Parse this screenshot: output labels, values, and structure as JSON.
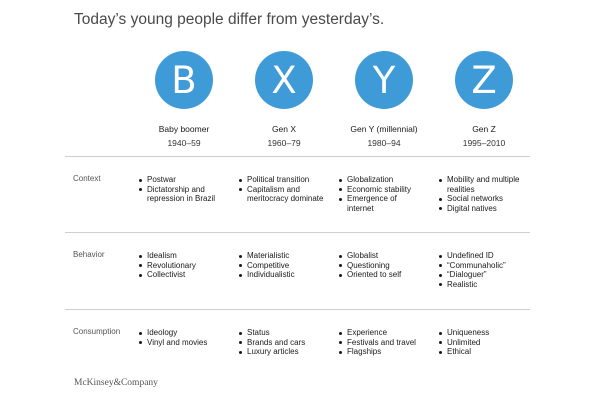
{
  "title": "Today’s young people differ from yesterday’s.",
  "generations": [
    {
      "letter": "B",
      "name": "Baby boomer",
      "years": "1940–59"
    },
    {
      "letter": "X",
      "name": "Gen X",
      "years": "1960–79"
    },
    {
      "letter": "Y",
      "name": "Gen Y (millennial)",
      "years": "1980–94"
    },
    {
      "letter": "Z",
      "name": "Gen Z",
      "years": "1995–2010"
    }
  ],
  "rows": [
    {
      "label": "Context",
      "cells": [
        [
          "Postwar",
          "Dictatorship and repression in Brazil"
        ],
        [
          "Political transition",
          "Capitalism and meritocracy dominate"
        ],
        [
          "Globalization",
          "Economic stability",
          "Emergence of internet"
        ],
        [
          "Mobility and multiple realities",
          "Social networks",
          "Digital natives"
        ]
      ]
    },
    {
      "label": "Behavior",
      "cells": [
        [
          "Idealism",
          "Revolutionary",
          "Collectivist"
        ],
        [
          "Materialistic",
          "Competitive",
          "Individualistic"
        ],
        [
          "Globalist",
          "Questioning",
          "Oriented to self"
        ],
        [
          "Undefined ID",
          "“Communaholic”",
          "“Dialoguer”",
          "Realistic"
        ]
      ]
    },
    {
      "label": "Consumption",
      "cells": [
        [
          "Ideology",
          "Vinyl and movies"
        ],
        [
          "Status",
          "Brands and cars",
          "Luxury articles"
        ],
        [
          "Experience",
          "Festivals and travel",
          "Flagships"
        ],
        [
          "Uniqueness",
          "Unlimited",
          "Ethical"
        ]
      ]
    }
  ],
  "source": "McKinsey&Company",
  "colors": {
    "circle": "#3f9bd8"
  }
}
